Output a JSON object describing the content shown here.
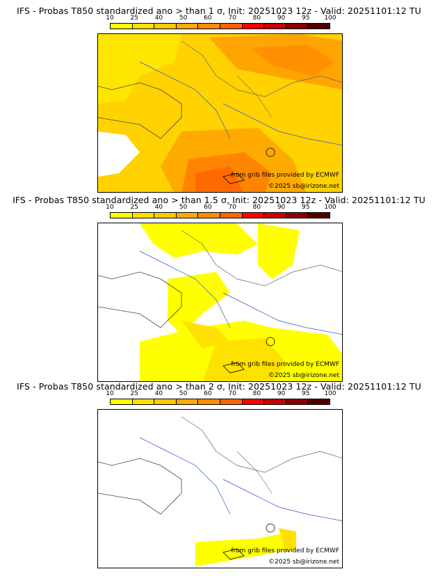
{
  "colorbar": {
    "ticks": [
      "10",
      "25",
      "40",
      "50",
      "60",
      "70",
      "80",
      "90",
      "95",
      "100"
    ],
    "colors": [
      "#ffff00",
      "#ffe100",
      "#ffc800",
      "#ffaa00",
      "#ff8c00",
      "#ff6400",
      "#ff0000",
      "#c80000",
      "#8b0000",
      "#500000"
    ]
  },
  "panels": [
    {
      "title": "IFS - Probas T850  standardized ano > than 1 σ, Init: 20251023 12z - Valid: 20251101:12 TU",
      "credit_source": "from grib files provided by ECMWF",
      "credit_copyright": "©2025 sb@irizone.net"
    },
    {
      "title": "IFS - Probas T850  standardized ano > than 1.5 σ, Init: 20251023 12z - Valid: 20251101:12 TU",
      "credit_source": "from grib files provided by ECMWF",
      "credit_copyright": "©2025 sb@irizone.net"
    },
    {
      "title": "IFS - Probas T850  standardized ano > than 2 σ, Init: 20251023 12z - Valid: 20251101:12 TU",
      "credit_source": "from grib files provided by ECMWF",
      "credit_copyright": "©2025 sb@irizone.net"
    }
  ]
}
